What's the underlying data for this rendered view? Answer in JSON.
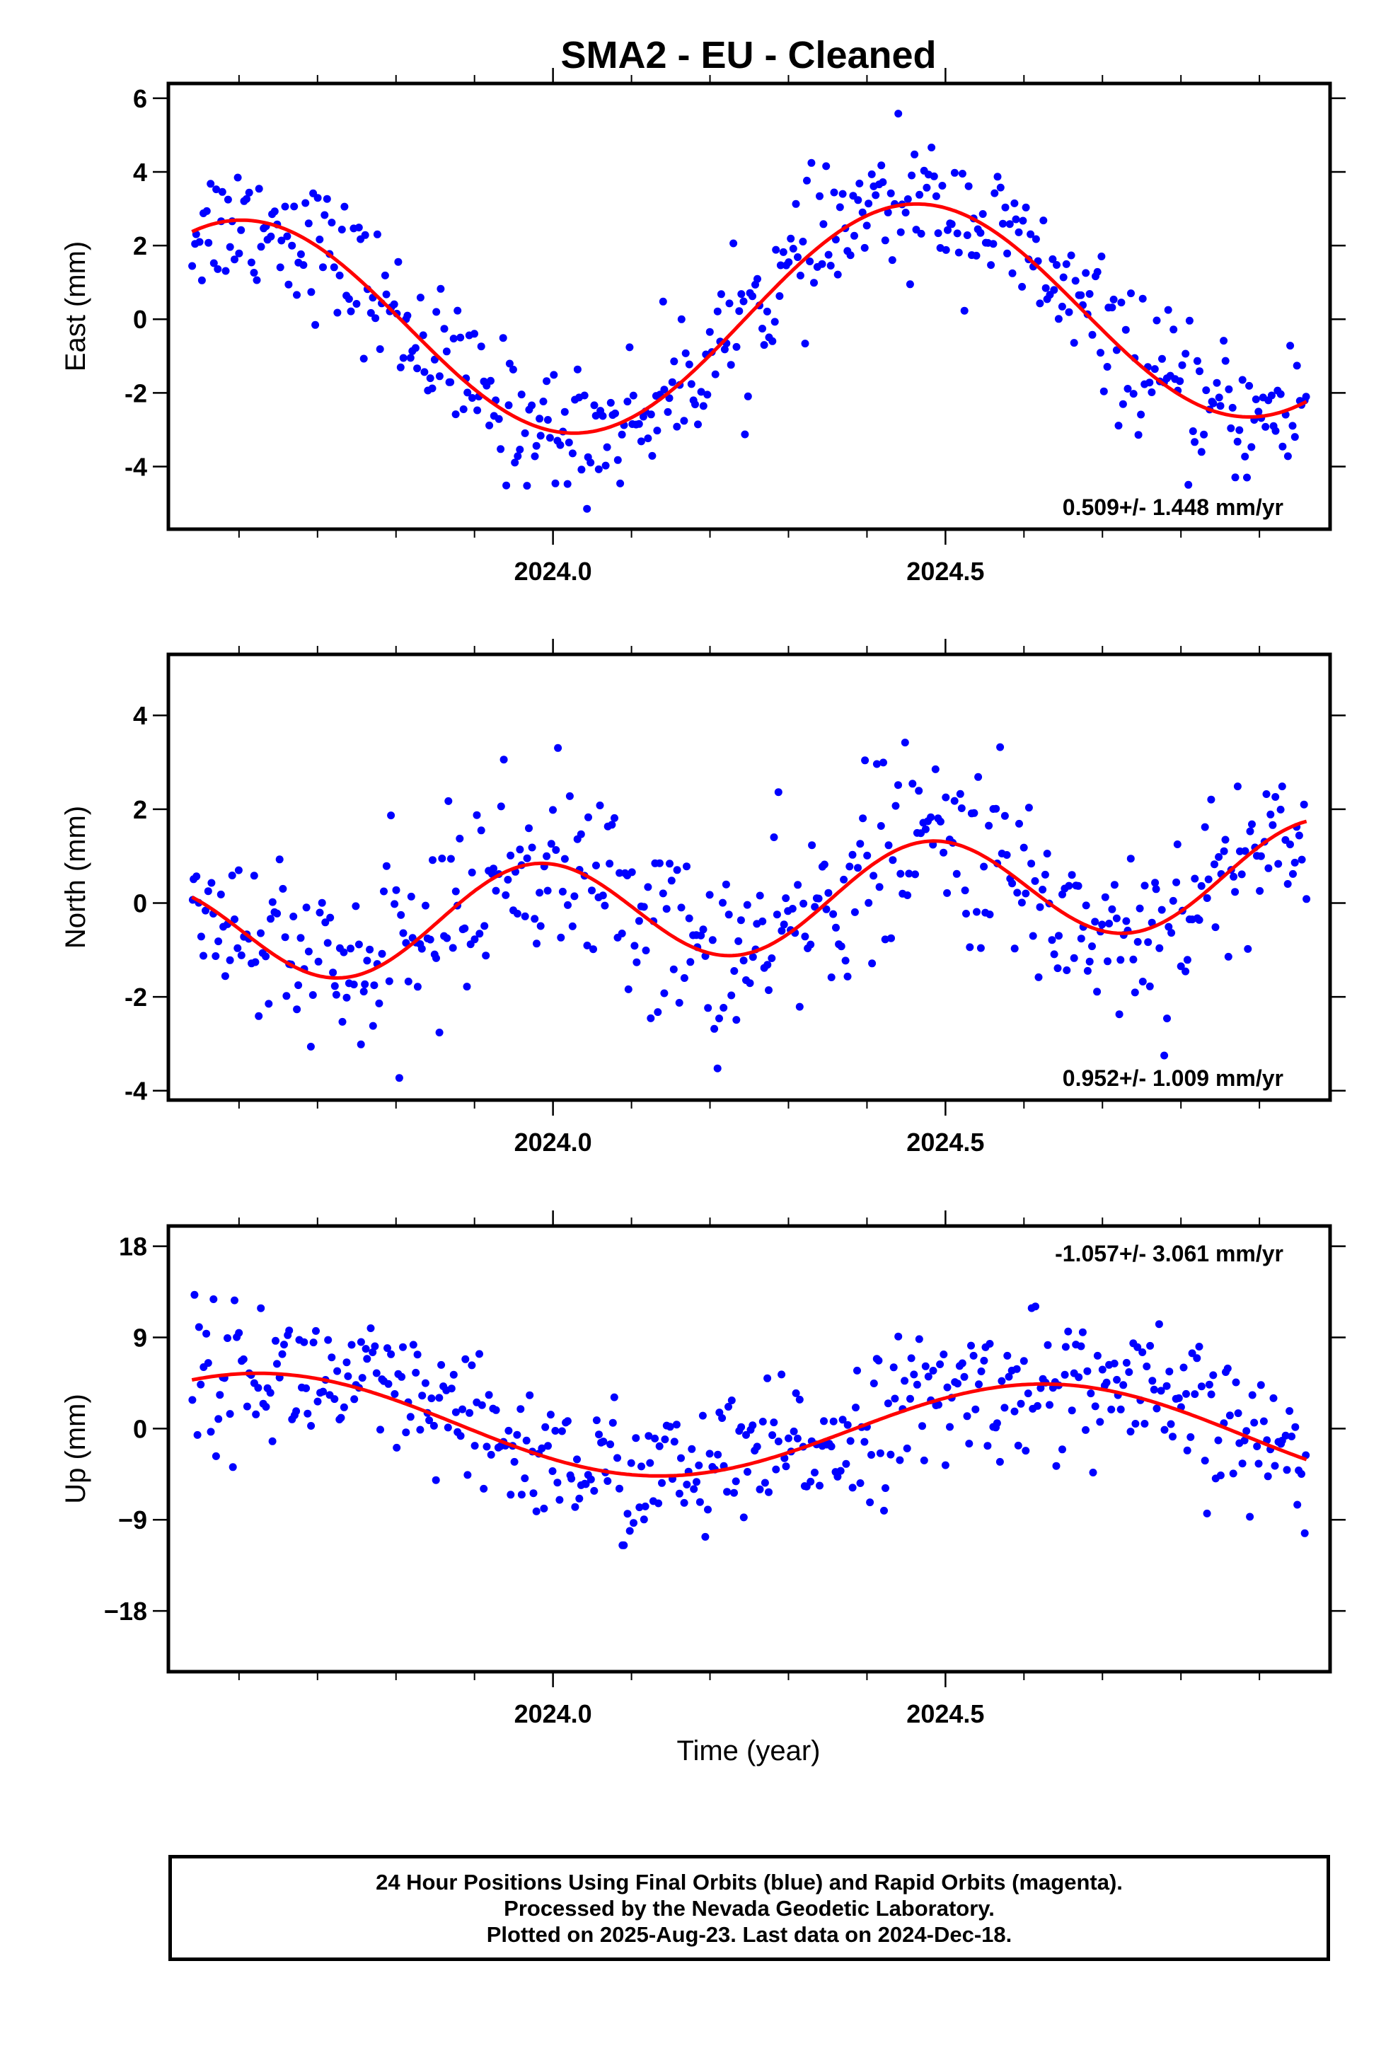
{
  "title": "SMA2  - EU - Cleaned",
  "xlabel": "Time (year)",
  "caption": [
    "24 Hour Positions Using Final Orbits (blue) and Rapid Orbits (magenta).",
    "Processed by the Nevada Geodetic Laboratory.",
    "Plotted on 2025-Aug-23. Last data on 2024-Dec-18."
  ],
  "colors": {
    "points": "#0000ff",
    "fit": "#ff0000",
    "frame": "#000000"
  },
  "chart_data": [
    {
      "type": "scatter",
      "ylabel": "East (mm)",
      "rate_label": "0.509+/- 1.448 mm/yr",
      "rate_position": "bottom-right",
      "xlim": [
        2023.51,
        2024.99
      ],
      "ylim": [
        -5.7,
        6.4
      ],
      "x_ticks": [
        2024.0,
        2024.5
      ],
      "x_tick_labels": [
        "2024.0",
        "2024.5"
      ],
      "y_ticks": [
        -4,
        -2,
        0,
        2,
        4,
        6
      ],
      "grid": false,
      "fit": {
        "type": "seasonal",
        "amp": 3.0,
        "trend": 0.509,
        "x0": 2024.21,
        "peak": 2024.46,
        "period": 0.86
      },
      "noise": 0.9,
      "series": [
        {
          "x_start": 2023.54,
          "x_end": 2024.96,
          "count": 470
        }
      ]
    },
    {
      "type": "scatter",
      "ylabel": "North (mm)",
      "rate_label": "0.952+/- 1.009 mm/yr",
      "rate_position": "bottom-right",
      "xlim": [
        2023.51,
        2024.99
      ],
      "ylim": [
        -4.2,
        5.3
      ],
      "x_ticks": [
        2024.0,
        2024.5
      ],
      "x_tick_labels": [
        "2024.0",
        "2024.5"
      ],
      "y_ticks": [
        -4,
        -2,
        0,
        2,
        4
      ],
      "grid": false,
      "fit": {
        "type": "seasonal",
        "amp": 1.1,
        "trend": 0.952,
        "x0": 2024.25,
        "peak": 2024.48,
        "period": 0.5
      },
      "noise": 1.0,
      "series": [
        {
          "x_start": 2023.54,
          "x_end": 2024.96,
          "count": 470
        }
      ]
    },
    {
      "type": "scatter",
      "ylabel": "Up (mm)",
      "rate_label": "-1.057+/- 3.061 mm/yr",
      "rate_position": "top-right",
      "xlim": [
        2023.51,
        2024.99
      ],
      "ylim": [
        -24,
        20
      ],
      "x_ticks": [
        2024.0,
        2024.5
      ],
      "x_tick_labels": [
        "2024.0",
        "2024.5"
      ],
      "y_ticks": [
        -18,
        -9,
        0,
        9,
        18
      ],
      "y_tick_labels": [
        "−18",
        "−9",
        "0",
        "9",
        "18"
      ],
      "grid": false,
      "fit": {
        "type": "seasonal",
        "amp": 4.8,
        "trend": -1.057,
        "x0": 2024.25,
        "peak": 2024.63,
        "period": 1.0
      },
      "noise": 3.5,
      "series": [
        {
          "x_start": 2023.54,
          "x_end": 2024.96,
          "count": 470
        }
      ]
    }
  ]
}
